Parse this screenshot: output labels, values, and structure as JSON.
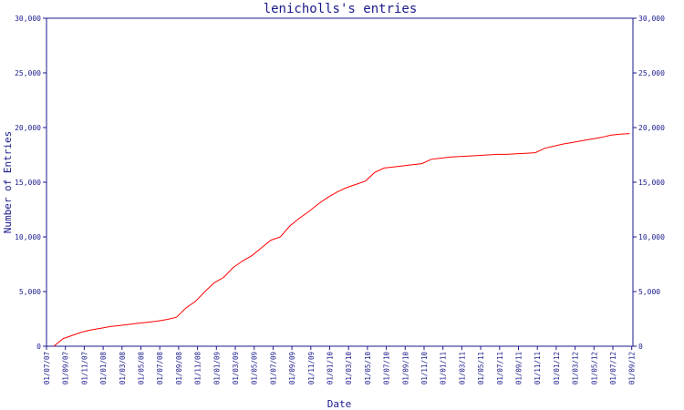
{
  "chart_data": {
    "type": "line",
    "title": "lenicholls's entries",
    "xlabel": "Date",
    "ylabel": "Number of Entries",
    "ylim": [
      0,
      30000
    ],
    "y_ticks": [
      0,
      5000,
      10000,
      15000,
      20000,
      25000,
      30000
    ],
    "y_tick_labels": [
      "0",
      "5,000",
      "10,000",
      "15,000",
      "20,000",
      "25,000",
      "30,000"
    ],
    "x_ticks": [
      "01/07/07",
      "01/09/07",
      "01/11/07",
      "01/01/08",
      "01/03/08",
      "01/05/08",
      "01/07/08",
      "01/09/08",
      "01/11/08",
      "01/01/09",
      "01/03/09",
      "01/05/09",
      "01/07/09",
      "01/09/09",
      "01/11/09",
      "01/01/10",
      "01/03/10",
      "01/05/10",
      "01/07/10",
      "01/09/10",
      "01/11/10",
      "01/01/11",
      "01/03/11",
      "01/05/11",
      "01/07/11",
      "01/09/11",
      "01/11/11",
      "01/01/12",
      "01/03/12",
      "01/05/12",
      "01/07/12",
      "01/09/12"
    ],
    "grid": false,
    "colors": {
      "line": "#ff0000",
      "axis": "#1a1a8c"
    },
    "series": [
      {
        "x": [
          "2007-07-01",
          "2007-08-01",
          "2007-09-01",
          "2007-10-01",
          "2007-11-01",
          "2007-12-01",
          "2008-01-01",
          "2008-02-01",
          "2008-03-01",
          "2008-04-01",
          "2008-05-01",
          "2008-06-01",
          "2008-07-01",
          "2008-08-01",
          "2008-09-01",
          "2008-10-01",
          "2008-11-01",
          "2008-12-01",
          "2009-01-01",
          "2009-02-01",
          "2009-03-01",
          "2009-04-01",
          "2009-05-01",
          "2009-06-01",
          "2009-07-01",
          "2009-08-01",
          "2009-09-01",
          "2009-10-01",
          "2009-11-01",
          "2009-12-01",
          "2010-01-01",
          "2010-02-01",
          "2010-03-01",
          "2010-04-01",
          "2010-05-01",
          "2010-06-01",
          "2010-07-01",
          "2010-08-01",
          "2010-09-01",
          "2010-10-01",
          "2010-11-01",
          "2010-12-01",
          "2011-01-01",
          "2011-02-01",
          "2011-03-01",
          "2011-04-01",
          "2011-05-01",
          "2011-06-01",
          "2011-07-01",
          "2011-08-01",
          "2011-09-01",
          "2011-10-01",
          "2011-11-01",
          "2011-12-01",
          "2012-01-01",
          "2012-02-01",
          "2012-03-01",
          "2012-04-01",
          "2012-05-01",
          "2012-06-01",
          "2012-07-01",
          "2012-08-01"
        ],
        "values": [
          0,
          700,
          1000,
          1300,
          1500,
          1650,
          1800,
          1900,
          2000,
          2100,
          2200,
          2300,
          2450,
          2650,
          3500,
          4100,
          5000,
          5800,
          6300,
          7200,
          7800,
          8300,
          9000,
          9700,
          10000,
          11000,
          11700,
          12300,
          13000,
          13600,
          14100,
          14500,
          14800,
          15100,
          15900,
          16300,
          16400,
          16500,
          16600,
          16700,
          17100,
          17200,
          17300,
          17350,
          17400,
          17450,
          17500,
          17550,
          17550,
          17600,
          17650,
          17700,
          18100,
          18300,
          18500,
          18650,
          18800,
          18950,
          19100,
          19300,
          19400,
          19450
        ]
      }
    ]
  }
}
